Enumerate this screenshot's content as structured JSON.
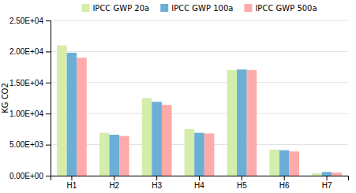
{
  "chart_data": {
    "type": "bar",
    "categories": [
      "H1",
      "H2",
      "H3",
      "H4",
      "H5",
      "H6",
      "H7"
    ],
    "series": [
      {
        "name": "IPCC GWP 20a",
        "color": "#d4edaa",
        "values": [
          21000,
          6900,
          12500,
          7500,
          17000,
          4200,
          400
        ]
      },
      {
        "name": "IPCC GWP 100a",
        "color": "#6baed6",
        "values": [
          19800,
          6600,
          11900,
          6900,
          17100,
          4100,
          600
        ]
      },
      {
        "name": "IPCC GWP 500a",
        "color": "#ffaaaa",
        "values": [
          19000,
          6400,
          11400,
          6800,
          17000,
          3900,
          500
        ]
      }
    ],
    "ylabel": "KG CO2",
    "ylim": [
      0,
      25000
    ],
    "yticks": [
      {
        "value": 0,
        "label": "0.00E+00"
      },
      {
        "value": 5000,
        "label": "5.00E+03"
      },
      {
        "value": 10000,
        "label": "1.00E+04"
      },
      {
        "value": 15000,
        "label": "1.50E+04"
      },
      {
        "value": 20000,
        "label": "2.00E+04"
      },
      {
        "value": 25000,
        "label": "2.50E+04"
      }
    ],
    "grid": true,
    "legend": "top"
  }
}
